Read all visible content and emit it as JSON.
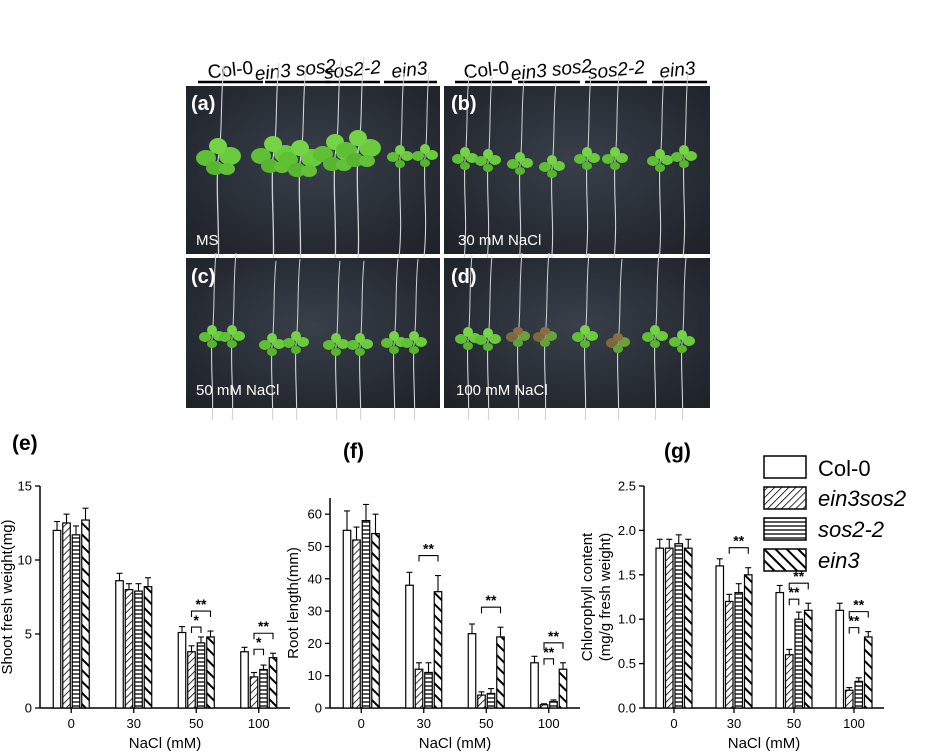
{
  "photo_panels": {
    "genotype_labels": [
      "Col-0",
      "ein3 sos2",
      "sos2-2",
      "ein3"
    ],
    "panels": [
      {
        "letter": "(a)",
        "condition": "MS"
      },
      {
        "letter": "(b)",
        "condition": "30 mM NaCl"
      },
      {
        "letter": "(c)",
        "condition": "50 mM NaCl"
      },
      {
        "letter": "(d)",
        "condition": "100 mM NaCl"
      }
    ]
  },
  "legend": {
    "items": [
      "Col-0",
      "ein3sos2",
      "sos2-2",
      "ein3"
    ]
  },
  "chart_data": [
    {
      "type": "bar",
      "letter": "(e)",
      "xlabel": "NaCl (mM)",
      "ylabel": "Shoot fresh weight(mg)",
      "categories": [
        "0",
        "30",
        "50",
        "100"
      ],
      "ylim": [
        0,
        15
      ],
      "yticks": [
        "0",
        "5",
        "10",
        "15"
      ],
      "series": [
        {
          "name": "Col-0",
          "values": [
            12.0,
            8.6,
            5.1,
            3.8
          ],
          "errors": [
            0.6,
            0.5,
            0.4,
            0.3
          ]
        },
        {
          "name": "ein3sos2",
          "values": [
            12.5,
            8.0,
            3.8,
            2.1
          ],
          "errors": [
            0.6,
            0.4,
            0.4,
            0.3
          ]
        },
        {
          "name": "sos2-2",
          "values": [
            11.7,
            7.9,
            4.4,
            2.6
          ],
          "errors": [
            0.6,
            0.5,
            0.4,
            0.3
          ]
        },
        {
          "name": "ein3",
          "values": [
            12.7,
            8.2,
            4.8,
            3.4
          ],
          "errors": [
            0.8,
            0.6,
            0.4,
            0.3
          ]
        }
      ],
      "annotations": [
        {
          "group": 2,
          "from": 1,
          "to": 3,
          "text": "**"
        },
        {
          "group": 2,
          "from": 1,
          "to": 2,
          "text": "*"
        },
        {
          "group": 3,
          "from": 1,
          "to": 3,
          "text": "**"
        },
        {
          "group": 3,
          "from": 1,
          "to": 2,
          "text": "*"
        }
      ]
    },
    {
      "type": "bar",
      "letter": "(f)",
      "xlabel": "NaCl (mM)",
      "ylabel": "Root length(mm)",
      "categories": [
        "0",
        "30",
        "50",
        "100"
      ],
      "ylim": [
        0,
        65
      ],
      "yticks": [
        "0",
        "10",
        "20",
        "30",
        "40",
        "50",
        "60"
      ],
      "series": [
        {
          "name": "Col-0",
          "values": [
            55,
            38,
            23,
            14
          ],
          "errors": [
            6,
            4,
            3,
            2
          ]
        },
        {
          "name": "ein3sos2",
          "values": [
            52,
            12,
            4,
            1
          ],
          "errors": [
            4,
            2,
            1,
            0.3
          ]
        },
        {
          "name": "sos2-2",
          "values": [
            58,
            11,
            4.5,
            2
          ],
          "errors": [
            5,
            3,
            1.5,
            0.5
          ]
        },
        {
          "name": "ein3",
          "values": [
            54,
            36,
            22,
            12
          ],
          "errors": [
            6,
            5,
            3,
            2
          ]
        }
      ],
      "annotations": [
        {
          "group": 1,
          "from": 1,
          "to": 3,
          "text": "**"
        },
        {
          "group": 2,
          "from": 1,
          "to": 3,
          "text": "**"
        },
        {
          "group": 3,
          "from": 1,
          "to": 3,
          "text": "**"
        },
        {
          "group": 3,
          "from": 1,
          "to": 2,
          "text": "**"
        }
      ]
    },
    {
      "type": "bar",
      "letter": "(g)",
      "xlabel": "NaCl (mM)",
      "ylabel": "Chlorophyll content\n(mg/g fresh weight)",
      "categories": [
        "0",
        "30",
        "50",
        "100"
      ],
      "ylim": [
        0,
        2.5
      ],
      "yticks": [
        "0.0",
        "0.5",
        "1.0",
        "1.5",
        "2.0",
        "2.5"
      ],
      "series": [
        {
          "name": "Col-0",
          "values": [
            1.8,
            1.6,
            1.3,
            1.1
          ],
          "errors": [
            0.1,
            0.08,
            0.08,
            0.08
          ]
        },
        {
          "name": "ein3sos2",
          "values": [
            1.8,
            1.2,
            0.6,
            0.2
          ],
          "errors": [
            0.1,
            0.08,
            0.06,
            0.03
          ]
        },
        {
          "name": "sos2-2",
          "values": [
            1.85,
            1.3,
            1.0,
            0.3
          ],
          "errors": [
            0.1,
            0.1,
            0.08,
            0.04
          ]
        },
        {
          "name": "ein3",
          "values": [
            1.8,
            1.5,
            1.1,
            0.8
          ],
          "errors": [
            0.1,
            0.08,
            0.08,
            0.06
          ]
        }
      ],
      "annotations": [
        {
          "group": 1,
          "from": 1,
          "to": 3,
          "text": "**"
        },
        {
          "group": 2,
          "from": 1,
          "to": 3,
          "text": "**"
        },
        {
          "group": 2,
          "from": 1,
          "to": 2,
          "text": "**"
        },
        {
          "group": 3,
          "from": 1,
          "to": 3,
          "text": "**"
        },
        {
          "group": 3,
          "from": 1,
          "to": 2,
          "text": "**"
        }
      ]
    }
  ]
}
